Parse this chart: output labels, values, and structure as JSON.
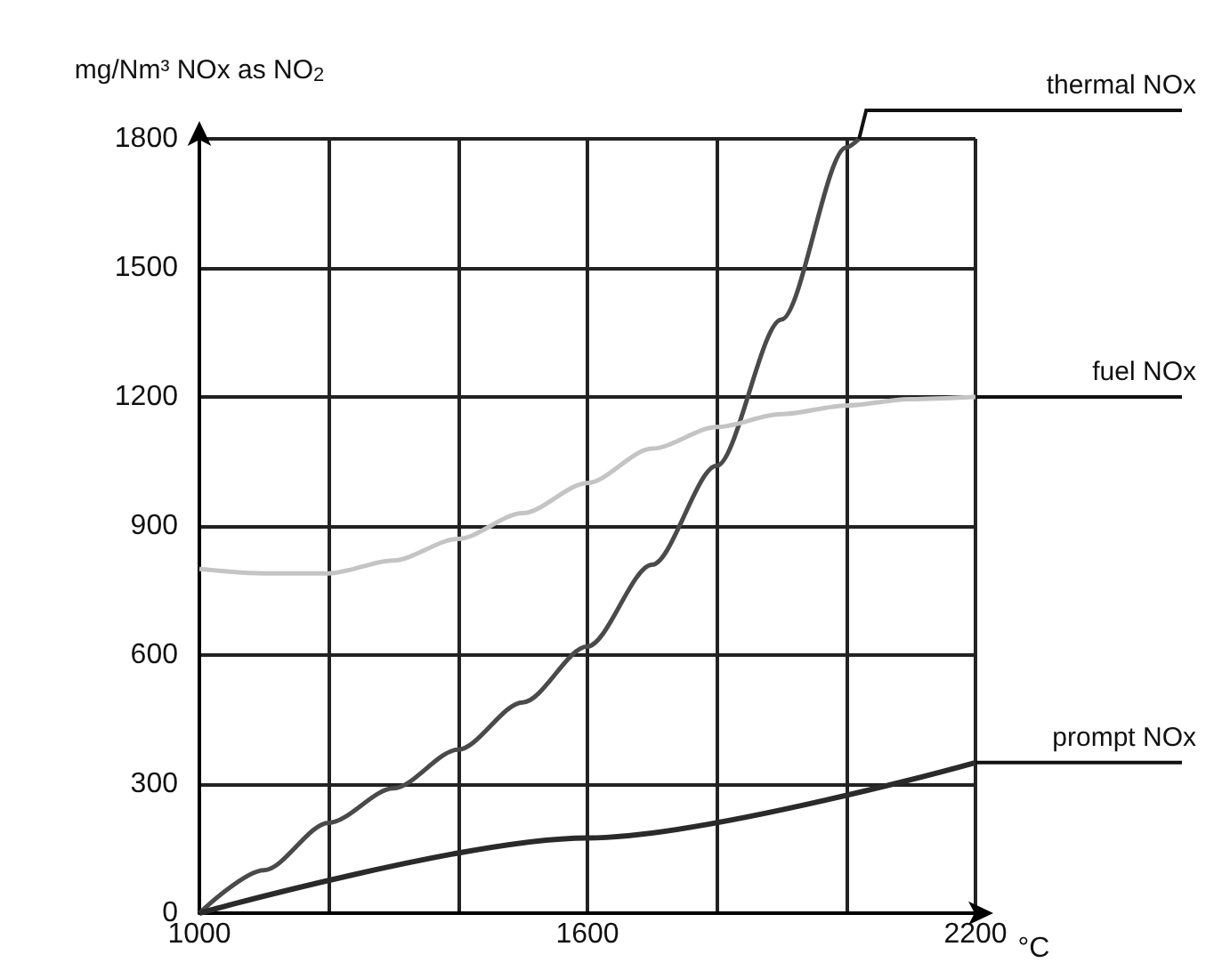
{
  "chart_data": {
    "type": "line",
    "ylabel": "mg/Nm³ NOx as NO$_{2}$",
    "xlabel": "°C",
    "xlim": [
      1000,
      2200
    ],
    "xticks": [
      1000,
      {
        "value": 1200,
        "label": null
      },
      {
        "value": 1400,
        "label": null
      },
      1600,
      {
        "value": 1800,
        "label": null
      },
      {
        "value": 2000,
        "label": null
      },
      2200
    ],
    "ylim": [
      0,
      1800
    ],
    "yticks": [
      0,
      300,
      600,
      900,
      1200,
      1500,
      1800
    ],
    "grid": true,
    "marker": "none",
    "line_style": "solid",
    "series": [
      {
        "name": "thermal NOx",
        "color": "#4a4a4a",
        "x": [
          1000,
          1100,
          1200,
          1300,
          1400,
          1500,
          1600,
          1700,
          1800,
          1900,
          2000,
          2020
        ],
        "values": [
          0,
          100,
          210,
          290,
          380,
          490,
          620,
          810,
          1040,
          1380,
          1780,
          1800
        ]
      },
      {
        "name": "fuel NOx",
        "color": "#c4c4c4",
        "x": [
          1000,
          1100,
          1200,
          1300,
          1400,
          1500,
          1600,
          1700,
          1800,
          1900,
          2000,
          2100,
          2200
        ],
        "values": [
          800,
          790,
          790,
          820,
          870,
          930,
          1000,
          1080,
          1130,
          1160,
          1180,
          1195,
          1200
        ]
      },
      {
        "name": "prompt NOx",
        "color": "#2a2a2a",
        "x": [
          1000,
          1600,
          2200
        ],
        "values": [
          0,
          175,
          350
        ]
      }
    ]
  }
}
